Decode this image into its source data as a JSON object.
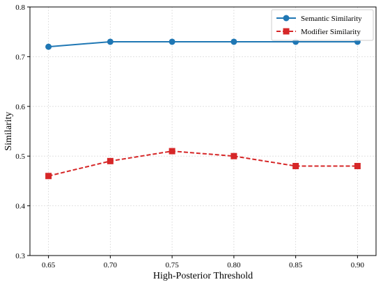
{
  "chart_data": {
    "type": "line",
    "title": "",
    "xlabel": "High-Posterior Threshold",
    "ylabel": "Similarity",
    "x": [
      0.65,
      0.7,
      0.75,
      0.8,
      0.85,
      0.9
    ],
    "x_tick_labels": [
      "0.65",
      "0.70",
      "0.75",
      "0.80",
      "0.85",
      "0.90"
    ],
    "xlim": [
      0.635,
      0.915
    ],
    "ylim": [
      0.3,
      0.8
    ],
    "y_ticks": [
      0.3,
      0.4,
      0.5,
      0.6,
      0.7,
      0.8
    ],
    "y_tick_labels": [
      "0.3",
      "0.4",
      "0.5",
      "0.6",
      "0.7",
      "0.8"
    ],
    "grid": true,
    "legend_position": "top-right",
    "series": [
      {
        "name": "Semantic Similarity",
        "values": [
          0.72,
          0.73,
          0.73,
          0.73,
          0.73,
          0.73
        ],
        "color": "#1f77b4",
        "marker": "circle",
        "line_style": "solid"
      },
      {
        "name": "Modifier Similarity",
        "values": [
          0.46,
          0.49,
          0.51,
          0.5,
          0.48,
          0.48
        ],
        "color": "#d62728",
        "marker": "square",
        "line_style": "dashed"
      }
    ]
  }
}
